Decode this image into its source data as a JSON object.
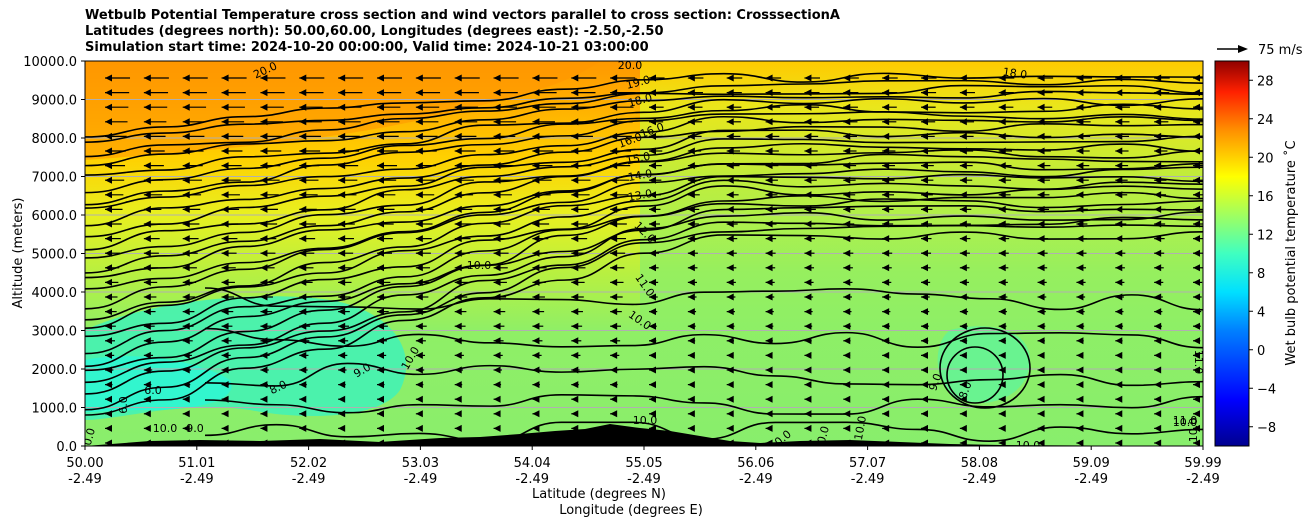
{
  "chart_data": {
    "type": "heatmap",
    "title": [
      "Wetbulb Potential Temperature cross section and wind vectors parallel to cross section: CrosssectionA",
      "Latitudes (degrees north): 50.00,60.00, Longitudes (degrees east): -2.50,-2.50",
      "Simulation start time: 2024-10-20 00:00:00, Valid time: 2024-10-21 03:00:00"
    ],
    "xlabel_lat": "Latitude (degrees N)",
    "xlabel_lon": "Longitude (degrees E)",
    "ylabel": "Altitude (meters)",
    "x_ticks_lat": [
      "50.00",
      "51.01",
      "52.02",
      "53.03",
      "54.04",
      "55.05",
      "56.06",
      "57.07",
      "58.08",
      "59.09",
      "59.99"
    ],
    "x_ticks_lon": [
      "-2.49",
      "-2.49",
      "-2.49",
      "-2.49",
      "-2.49",
      "-2.49",
      "-2.49",
      "-2.49",
      "-2.49",
      "-2.49",
      "-2.49"
    ],
    "xlim": [
      50.0,
      59.99
    ],
    "y_ticks": [
      "0.0",
      "1000.0",
      "2000.0",
      "3000.0",
      "4000.0",
      "5000.0",
      "6000.0",
      "7000.0",
      "8000.0",
      "9000.0",
      "10000.0"
    ],
    "ylim": [
      0,
      10000
    ],
    "colorbar_label": "Wet bulb potential temperature ˚C",
    "colorbar_ticks": [
      "−8",
      "−4",
      "0",
      "4",
      "8",
      "12",
      "16",
      "20",
      "24",
      "28"
    ],
    "colorbar_range": [
      -10,
      30
    ],
    "quiver_key_label": "75 m/s",
    "grid": true,
    "contour_labels": [
      "20.0",
      "20.0",
      "19.0",
      "18.0",
      "18.0",
      "16.0",
      "16.0",
      "15.0",
      "14.0",
      "13.0",
      "12.0",
      "11.0",
      "10.0",
      "10.0",
      "10.0",
      "10.0",
      "10.0",
      "10.0",
      "10.0",
      "10.0",
      "10.0",
      "10.0",
      "10.0",
      "9.0",
      "9.0",
      "9.0",
      "8.0",
      "8.0",
      "6.0",
      "6.0",
      "11.0",
      "11.0",
      "10.0"
    ],
    "colors": {
      "warm": "#ff9a00",
      "mid": "#ffd500",
      "green": "#8fef66",
      "cyan": "#34f5c6",
      "orography": "#000000"
    }
  }
}
